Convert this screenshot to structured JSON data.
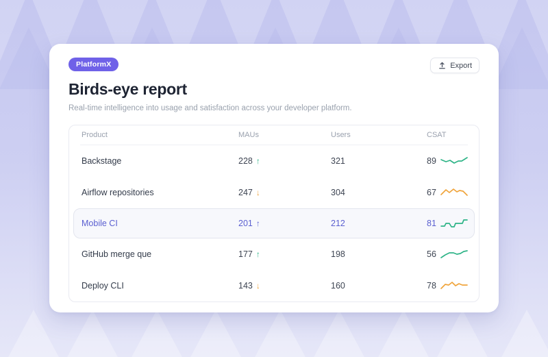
{
  "badge": {
    "label": "PlatformX"
  },
  "export_button": {
    "label": "Export"
  },
  "header": {
    "title": "Birds-eye report",
    "subtitle": "Real-time intelligence into usage and satisfaction across your developer platform."
  },
  "theme": {
    "badge_purple": "#6f61e8",
    "highlight_indigo": "#5a5fd0",
    "trend_up_green": "#2eb487",
    "trend_down_amber": "#f0a43b",
    "card_white": "#ffffff",
    "background_lavender": "#c5c7f0"
  },
  "table": {
    "columns": [
      "Product",
      "MAUs",
      "Users",
      "CSAT"
    ],
    "rows": [
      {
        "product": "Backstage",
        "maus": "228",
        "trend": "up",
        "arrow": "↑",
        "users": "321",
        "csat": "89",
        "highlighted": false,
        "spark_color": "#2eb487",
        "spark": [
          [
            1,
            6
          ],
          [
            8,
            9
          ],
          [
            14,
            7
          ],
          [
            20,
            11
          ],
          [
            26,
            8
          ],
          [
            31,
            8
          ],
          [
            39,
            3
          ]
        ]
      },
      {
        "product": "Airflow repositories",
        "maus": "247",
        "trend": "down",
        "arrow": "↓",
        "users": "304",
        "csat": "67",
        "highlighted": false,
        "spark_color": "#f0a43b",
        "spark": [
          [
            1,
            11
          ],
          [
            8,
            4
          ],
          [
            13,
            8
          ],
          [
            19,
            3
          ],
          [
            24,
            7
          ],
          [
            28,
            5
          ],
          [
            33,
            6
          ],
          [
            39,
            12
          ]
        ]
      },
      {
        "product": "Mobile CI",
        "maus": "201",
        "trend": "up",
        "arrow": "↑",
        "users": "212",
        "csat": "81",
        "highlighted": true,
        "spark_color": "#2eb487",
        "spark": [
          [
            1,
            12
          ],
          [
            6,
            12
          ],
          [
            8,
            8
          ],
          [
            13,
            8
          ],
          [
            16,
            13
          ],
          [
            20,
            13
          ],
          [
            22,
            8
          ],
          [
            28,
            8
          ],
          [
            32,
            8
          ],
          [
            34,
            3
          ],
          [
            39,
            3
          ]
        ]
      },
      {
        "product": "GitHub merge que",
        "maus": "177",
        "trend": "up",
        "arrow": "↑",
        "users": "198",
        "csat": "56",
        "highlighted": false,
        "spark_color": "#2eb487",
        "spark": [
          [
            1,
            13
          ],
          [
            7,
            9
          ],
          [
            13,
            6
          ],
          [
            19,
            6
          ],
          [
            24,
            8
          ],
          [
            29,
            7
          ],
          [
            34,
            4
          ],
          [
            39,
            3
          ]
        ]
      },
      {
        "product": "Deploy CLI",
        "maus": "143",
        "trend": "down",
        "arrow": "↓",
        "users": "160",
        "csat": "78",
        "highlighted": false,
        "spark_color": "#f0a43b",
        "spark": [
          [
            1,
            12
          ],
          [
            7,
            6
          ],
          [
            12,
            7
          ],
          [
            17,
            3
          ],
          [
            22,
            8
          ],
          [
            27,
            5
          ],
          [
            32,
            7
          ],
          [
            39,
            7
          ]
        ]
      }
    ]
  }
}
